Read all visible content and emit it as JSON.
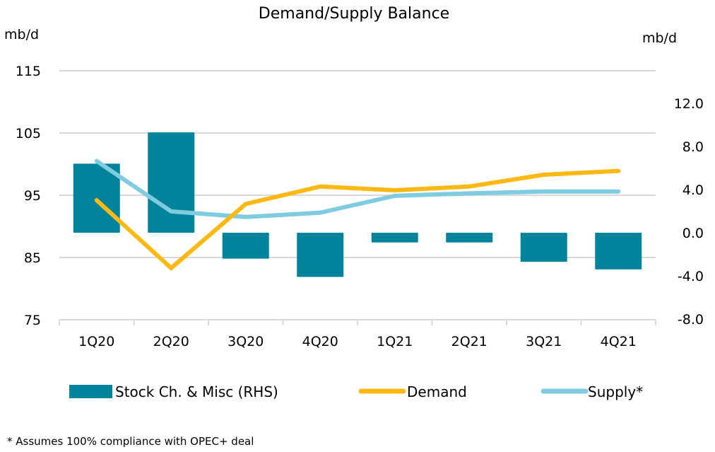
{
  "chart_data": {
    "type": "bar+line",
    "title": "Demand/Supply Balance",
    "categories": [
      "1Q20",
      "2Q20",
      "3Q20",
      "4Q20",
      "1Q21",
      "2Q21",
      "3Q21",
      "4Q21"
    ],
    "left_axis": {
      "label": "mb/d",
      "range": [
        75,
        115
      ],
      "ticks": [
        75,
        85,
        95,
        105,
        115
      ],
      "tick_labels": [
        "75",
        "85",
        "95",
        "105",
        "115"
      ]
    },
    "right_axis": {
      "label": "mb/d",
      "range": [
        -8,
        15.8
      ],
      "ticks": [
        -8,
        -4,
        0,
        4,
        8,
        12
      ],
      "tick_labels": [
        "-8.0",
        "-4.0",
        "0.0",
        "4.0",
        "8.0",
        "12.0"
      ]
    },
    "series": [
      {
        "name": "Stock Ch. & Misc (RHS)",
        "type": "bar",
        "axis": "right",
        "color": "#00849B",
        "values": [
          6.4,
          9.3,
          -2.4,
          -4.1,
          -0.9,
          -0.9,
          -2.7,
          -3.4
        ]
      },
      {
        "name": "Demand",
        "type": "line",
        "axis": "left",
        "color": "#FDB913",
        "values": [
          94.2,
          83.3,
          93.6,
          96.4,
          95.8,
          96.4,
          98.3,
          98.9
        ]
      },
      {
        "name": "Supply*",
        "type": "line",
        "axis": "left",
        "color": "#7FCCE0",
        "values": [
          100.5,
          92.4,
          91.5,
          92.2,
          94.9,
          95.3,
          95.6,
          95.6
        ]
      }
    ],
    "grid": true,
    "grid_color": "#D9D9D9",
    "legend_position": "bottom"
  },
  "footnote": "* Assumes 100% compliance with OPEC+ deal"
}
